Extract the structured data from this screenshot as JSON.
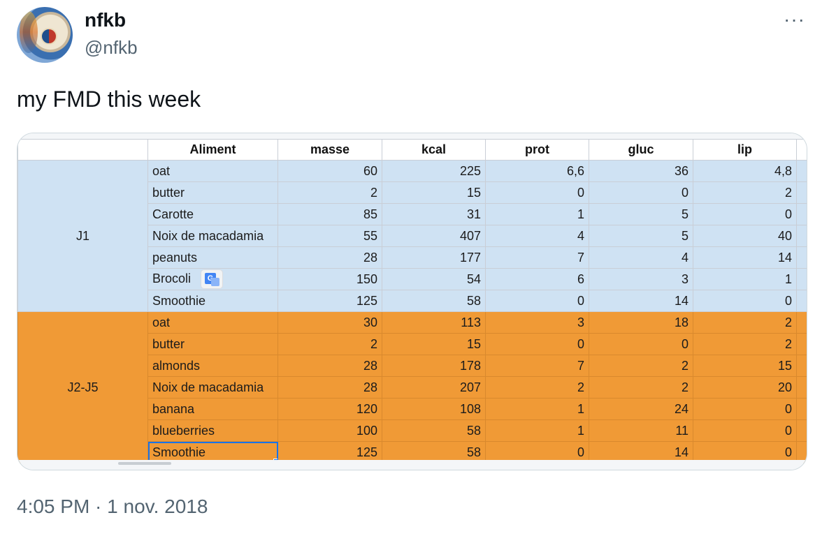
{
  "user": {
    "display_name": "nfkb",
    "handle": "@nfkb",
    "avatar_icon": "avatar-image"
  },
  "menu": {
    "more_label": "···"
  },
  "tweet": {
    "text": "my FMD this week",
    "timestamp": "4:05 PM · 1 nov. 2018"
  },
  "sheet": {
    "headers": [
      "Aliment",
      "masse",
      "kcal",
      "prot",
      "gluc",
      "lip"
    ],
    "colors": {
      "group1": "#cfe2f3",
      "group2": "#f09a36",
      "selection": "#1a73e8"
    },
    "groups": [
      {
        "label": "J1",
        "rows": [
          [
            "oat",
            "60",
            "225",
            "6,6",
            "36",
            "4,8"
          ],
          [
            "butter",
            "2",
            "15",
            "0",
            "0",
            "2"
          ],
          [
            "Carotte",
            "85",
            "31",
            "1",
            "5",
            "0"
          ],
          [
            "Noix de macadamia",
            "55",
            "407",
            "4",
            "5",
            "40"
          ],
          [
            "peanuts",
            "28",
            "177",
            "7",
            "4",
            "14"
          ],
          [
            "Brocoli",
            "150",
            "54",
            "6",
            "3",
            "1"
          ],
          [
            "Smoothie",
            "125",
            "58",
            "0",
            "14",
            "0"
          ]
        ]
      },
      {
        "label": "J2-J5",
        "rows": [
          [
            "oat",
            "30",
            "113",
            "3",
            "18",
            "2"
          ],
          [
            "butter",
            "2",
            "15",
            "0",
            "0",
            "2"
          ],
          [
            "almonds",
            "28",
            "178",
            "7",
            "2",
            "15"
          ],
          [
            "Noix de macadamia",
            "28",
            "207",
            "2",
            "2",
            "20"
          ],
          [
            "banana",
            "120",
            "108",
            "1",
            "24",
            "0"
          ],
          [
            "blueberries",
            "100",
            "58",
            "1",
            "11",
            "0"
          ],
          [
            "Smoothie",
            "125",
            "58",
            "0",
            "14",
            "0"
          ]
        ]
      }
    ]
  }
}
